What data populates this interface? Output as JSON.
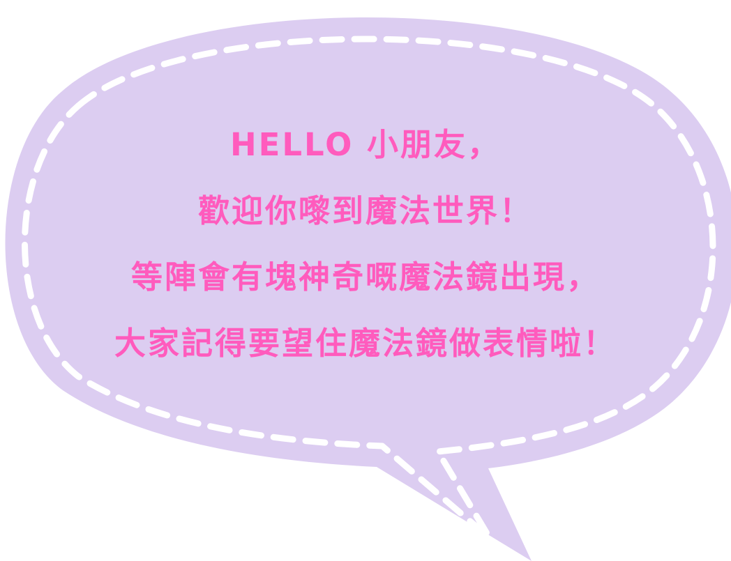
{
  "bubble": {
    "fill_color": "#dccdf1",
    "stitch_color": "#ffffff"
  },
  "message": {
    "text_color": "#ff5bbd",
    "lines": [
      "HELLO 小朋友，",
      "歡迎你嚟到魔法世界！",
      "等陣會有塊神奇嘅魔法鏡出現，",
      "大家記得要望住魔法鏡做表情啦！"
    ]
  }
}
